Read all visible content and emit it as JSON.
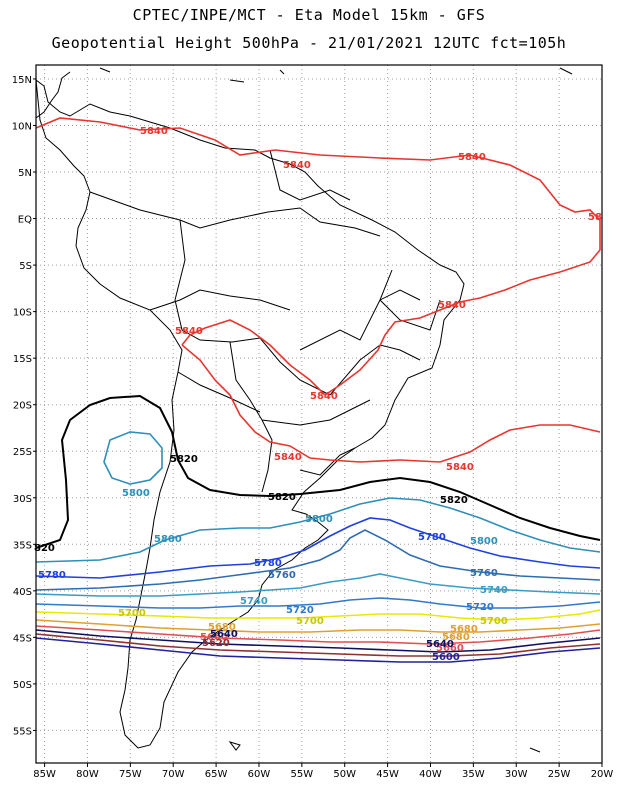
{
  "header": {
    "line1": "CPTEC/INPE/MCT -  Eta Model 15km - GFS",
    "line2": "Geopotential Height 500hPa - 21/01/2021 12UTC fct=105h"
  },
  "axes": {
    "lat_labels": [
      "15N",
      "10N",
      "5N",
      "EQ",
      "5S",
      "10S",
      "15S",
      "20S",
      "25S",
      "30S",
      "35S",
      "40S",
      "45S",
      "50S",
      "55S"
    ],
    "lat_values": [
      15,
      10,
      5,
      0,
      -5,
      -10,
      -15,
      -20,
      -25,
      -30,
      -35,
      -40,
      -45,
      -50,
      -55
    ],
    "lon_labels": [
      "85W",
      "80W",
      "75W",
      "70W",
      "65W",
      "60W",
      "55W",
      "50W",
      "45W",
      "40W",
      "35W",
      "30W",
      "25W",
      "20W"
    ],
    "lon_values": [
      -85,
      -80,
      -75,
      -70,
      -65,
      -60,
      -55,
      -50,
      -45,
      -40,
      -35,
      -30,
      -25,
      -20
    ],
    "lon_range": [
      -86,
      -20
    ],
    "lat_range": [
      -58.5,
      16.5
    ]
  },
  "map": {
    "land_color": "#000000",
    "grid_color": "#a0a0a0"
  },
  "contours": [
    {
      "name": "5840",
      "color": "#e8352f",
      "labels": [
        "5840",
        "5840",
        "5840",
        "58",
        "5840",
        "5840",
        "5840",
        "5840",
        "5840"
      ]
    },
    {
      "name": "5820",
      "color": "#000000",
      "labels": [
        "5820",
        "5820",
        "5820",
        "820"
      ]
    },
    {
      "name": "5800",
      "color": "#2e8fb8",
      "labels": [
        "5800",
        "5800",
        "5800",
        "5800"
      ]
    },
    {
      "name": "5780",
      "color": "#1e40e0",
      "labels": [
        "5780",
        "5780",
        "5780"
      ]
    },
    {
      "name": "5760",
      "color": "#2f6cb0",
      "labels": [
        "5760",
        "5760"
      ]
    },
    {
      "name": "5740",
      "color": "#3a9cc4",
      "labels": [
        "5740",
        "5740"
      ]
    },
    {
      "name": "5720",
      "color": "#3478c8",
      "labels": [
        "5720",
        "5720"
      ]
    },
    {
      "name": "5700",
      "color": "#e8e800",
      "labels": [
        "5700",
        "5700",
        "5700"
      ]
    },
    {
      "name": "5680",
      "color": "#e0a030",
      "labels": [
        "5680",
        "5680",
        "5680"
      ]
    },
    {
      "name": "5660",
      "color": "#e05050",
      "labels": [
        "5660",
        "5660"
      ]
    },
    {
      "name": "5640",
      "color": "#101060",
      "labels": [
        "5640",
        "5640"
      ]
    },
    {
      "name": "5620",
      "color": "#903030",
      "labels": [
        "5620"
      ]
    },
    {
      "name": "5600",
      "color": "#2020a0",
      "labels": [
        "5600"
      ]
    }
  ]
}
